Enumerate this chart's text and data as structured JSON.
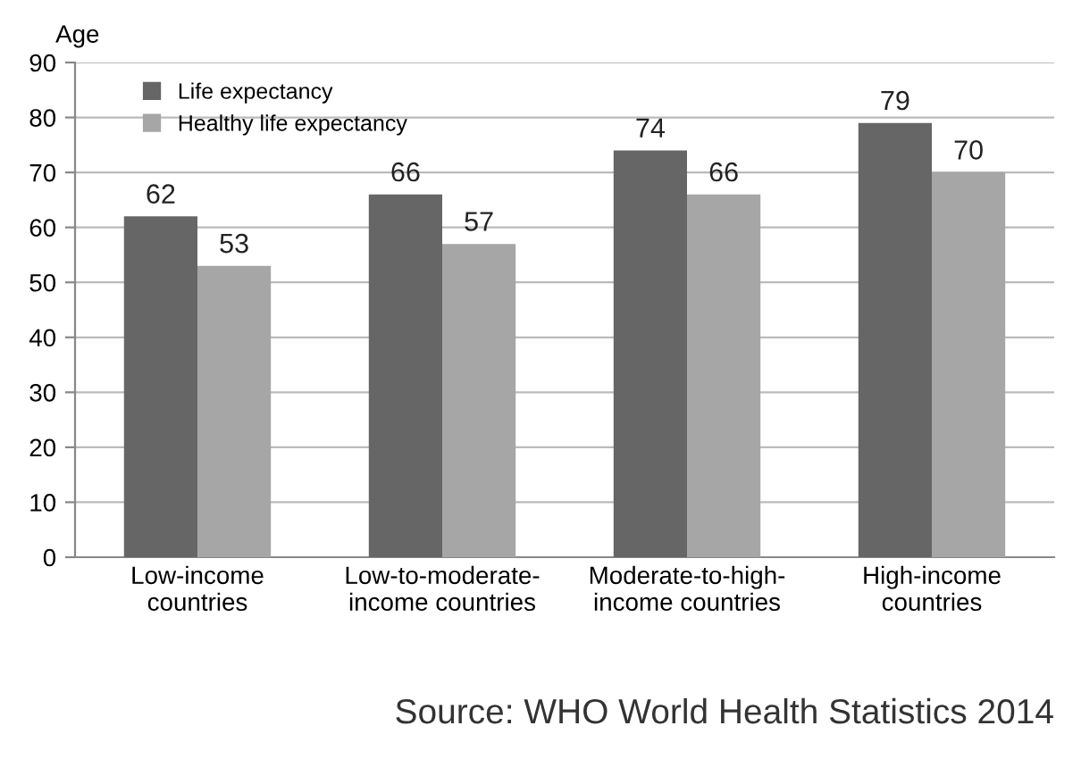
{
  "chart_data": {
    "type": "bar",
    "ylabel": "Age",
    "categories": [
      "Low-income\ncountries",
      "Low-to-moderate-\nincome countries",
      "Moderate-to-high-\nincome countries",
      "High-income\ncountries"
    ],
    "series": [
      {
        "name": "Life expectancy",
        "color": "#666666",
        "values": [
          62,
          66,
          74,
          79
        ]
      },
      {
        "name": "Healthy life expectancy",
        "color": "#a6a6a6",
        "values": [
          53,
          57,
          66,
          70
        ]
      }
    ],
    "ylim": [
      0,
      90
    ],
    "yticks": [
      0,
      10,
      20,
      30,
      40,
      50,
      60,
      70,
      80,
      90
    ],
    "grid": "y",
    "legend": "top left",
    "data_labels": true,
    "annotations": [
      "Source: WHO World Health Statistics 2014"
    ]
  }
}
